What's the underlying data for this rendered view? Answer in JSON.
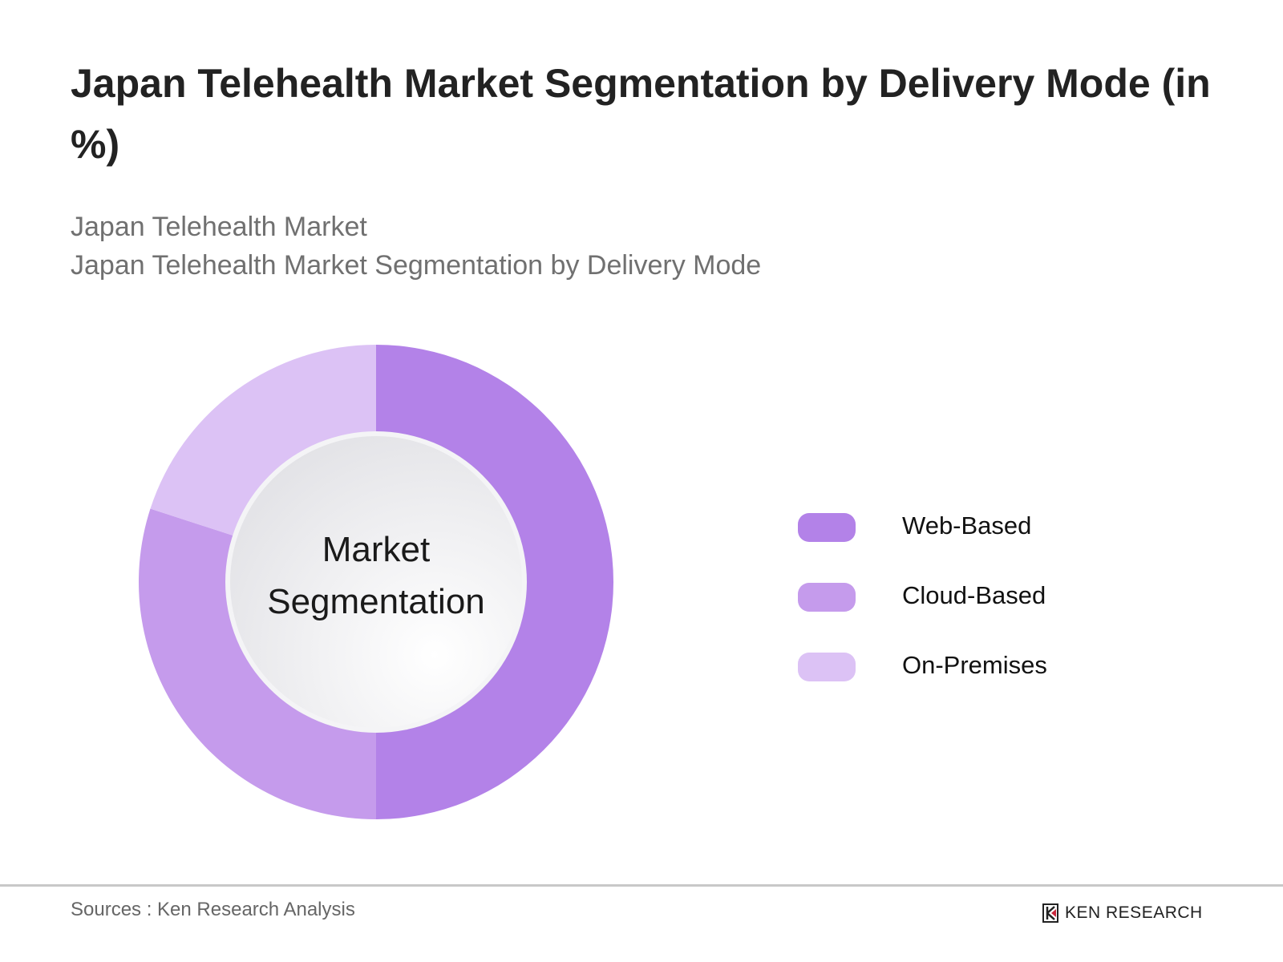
{
  "title": "Japan Telehealth Market Segmentation by Delivery Mode (in %)",
  "subtitle_line1": "Japan Telehealth Market",
  "subtitle_line2": "Japan Telehealth Market Segmentation by Delivery Mode",
  "chart_data": {
    "type": "pie",
    "variant": "donut",
    "title": "Japan Telehealth Market Segmentation by Delivery Mode (in %)",
    "center_label": [
      "Market",
      "Segmentation"
    ],
    "categories": [
      "Web-Based",
      "Cloud-Based",
      "On-Premises"
    ],
    "values": [
      50,
      30,
      20
    ],
    "unit": "%",
    "colors": [
      "#b382e8",
      "#c59bec",
      "#dcc2f5"
    ],
    "legend_position": "right"
  },
  "footer": {
    "source": "Sources : Ken Research Analysis",
    "logo_text": "KEN RESEARCH"
  }
}
